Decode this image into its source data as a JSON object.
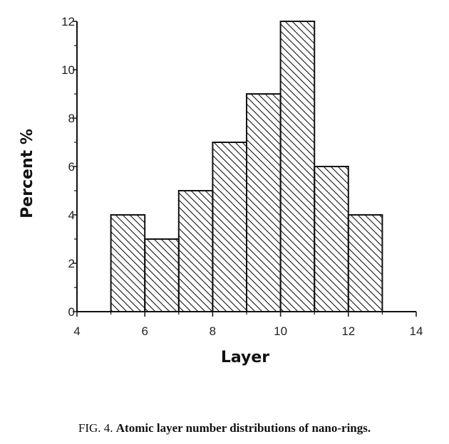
{
  "chart_data": {
    "type": "bar",
    "xlabel": "Layer",
    "ylabel": "Percent %",
    "xlim": [
      4,
      14
    ],
    "ylim": [
      0,
      12
    ],
    "xticks": [
      "4",
      "6",
      "8",
      "10",
      "12",
      "14"
    ],
    "yticks": [
      "0",
      "2",
      "4",
      "6",
      "8",
      "10",
      "12"
    ],
    "bars": [
      {
        "x_start": 5,
        "x_end": 6,
        "value": 4
      },
      {
        "x_start": 6,
        "x_end": 7,
        "value": 3
      },
      {
        "x_start": 7,
        "x_end": 8,
        "value": 5
      },
      {
        "x_start": 8,
        "x_end": 9,
        "value": 7
      },
      {
        "x_start": 9,
        "x_end": 10,
        "value": 9
      },
      {
        "x_start": 10,
        "x_end": 11,
        "value": 12
      },
      {
        "x_start": 11,
        "x_end": 12,
        "value": 6
      },
      {
        "x_start": 12,
        "x_end": 13,
        "value": 4
      }
    ],
    "fill": "diagonal hatch",
    "bar_color": "#111111",
    "grid": false
  },
  "caption": {
    "prefix": "FIG. 4. ",
    "text": "Atomic layer number distributions of nano-rings."
  }
}
